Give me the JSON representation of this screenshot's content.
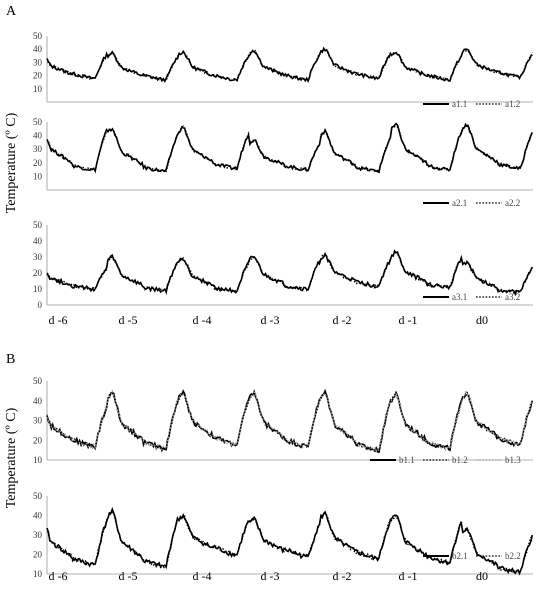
{
  "figure": {
    "panel_A_label": "A",
    "panel_B_label": "B",
    "ylabel_A": "Temperature (º C)",
    "ylabel_B": "Temperature (º C)",
    "day_labels": [
      "d -6",
      "d -5",
      "d -4",
      "d -3",
      "d -2",
      "d -1",
      "d0"
    ]
  },
  "chart_data": [
    {
      "id": "a1",
      "type": "line",
      "panel": "A",
      "ylim": [
        0,
        50
      ],
      "yticks": [
        10,
        20,
        30,
        40,
        50
      ],
      "xlim": [
        -6.35,
        0.5
      ],
      "x_unit": "day",
      "grid": false,
      "legend_position": "bottom-right",
      "daily_min": [
        18,
        17,
        17,
        17,
        18,
        17,
        19
      ],
      "daily_max": [
        39,
        37,
        38,
        39,
        40,
        38,
        40
      ],
      "series": [
        {
          "name": "a1.1",
          "style": "solid",
          "color": "#000000",
          "x": [
            -6.35,
            -6.2,
            -6.0,
            -5.8,
            -5.6,
            -5.4,
            -5.2,
            -5.0,
            -4.8,
            -4.6,
            -4.4,
            -4.2,
            -4.0,
            -3.8,
            -3.6,
            -3.4,
            -3.2,
            -3.0,
            -2.8,
            -2.6,
            -2.4,
            -2.2,
            -2.0,
            -1.8,
            -1.6,
            -1.4,
            -1.2,
            -1.0,
            -0.8,
            -0.6,
            -0.4,
            -0.2,
            0.0,
            0.2,
            0.4,
            0.5
          ],
          "y": [
            32,
            39,
            36,
            30,
            22,
            20,
            18,
            31,
            37,
            33,
            23,
            20,
            19,
            32,
            38,
            33,
            23,
            20,
            18,
            33,
            38,
            33,
            23,
            20,
            18,
            33,
            37,
            32,
            22,
            20,
            19,
            33,
            39,
            32,
            21,
            24
          ]
        },
        {
          "name": "a1.2",
          "style": "dotted",
          "color": "#000000",
          "x": [
            -6.35,
            -6.2,
            -6.0,
            -5.8,
            -5.6,
            -5.4,
            -5.2,
            -5.0,
            -4.8,
            -4.6,
            -4.4,
            -4.2,
            -4.0,
            -3.8,
            -3.6,
            -3.4,
            -3.2,
            -3.0,
            -2.8,
            -2.6,
            -2.4,
            -2.2,
            -2.0,
            -1.8,
            -1.6,
            -1.4,
            -1.2,
            -1.0,
            -0.8,
            -0.6,
            -0.4,
            -0.2,
            0.0,
            0.2,
            0.4,
            0.5
          ],
          "y": [
            33,
            38,
            38,
            32,
            23,
            21,
            19,
            33,
            38,
            34,
            24,
            21,
            20,
            34,
            39,
            34,
            24,
            21,
            19,
            35,
            40,
            34,
            24,
            21,
            19,
            35,
            38,
            33,
            23,
            21,
            20,
            35,
            40,
            33,
            22,
            24
          ]
        }
      ]
    },
    {
      "id": "a2",
      "type": "line",
      "panel": "A",
      "ylim": [
        0,
        50
      ],
      "yticks": [
        10,
        20,
        30,
        40,
        50
      ],
      "xlim": [
        -6.35,
        0.5
      ],
      "x_unit": "day",
      "grid": false,
      "legend_position": "bottom-right",
      "daily_min": [
        15,
        14,
        16,
        15,
        14,
        15,
        16
      ],
      "daily_max": [
        49,
        45,
        46,
        37,
        43,
        48,
        48
      ],
      "series": [
        {
          "name": "a2.1",
          "style": "solid",
          "color": "#000000",
          "x": [
            -6.35,
            -6.2,
            -6.0,
            -5.8,
            -5.6,
            -5.4,
            -5.2,
            -5.0,
            -4.8,
            -4.6,
            -4.4,
            -4.2,
            -4.0,
            -3.8,
            -3.6,
            -3.4,
            -3.2,
            -3.0,
            -2.8,
            -2.6,
            -2.4,
            -2.2,
            -2.0,
            -1.8,
            -1.6,
            -1.4,
            -1.2,
            -1.0,
            -0.8,
            -0.6,
            -0.4,
            -0.2,
            0.0,
            0.2,
            0.4,
            0.5
          ],
          "y": [
            24,
            36,
            48,
            38,
            20,
            16,
            15,
            28,
            44,
            35,
            20,
            17,
            16,
            32,
            45,
            33,
            20,
            18,
            17,
            30,
            36,
            30,
            19,
            16,
            14,
            30,
            42,
            30,
            19,
            16,
            15,
            32,
            47,
            33,
            20,
            16
          ]
        },
        {
          "name": "a2.2",
          "style": "dotted",
          "color": "#000000",
          "x": [
            -6.35,
            -6.2,
            -6.0,
            -5.8,
            -5.6,
            -5.4,
            -5.2,
            -5.0,
            -4.8,
            -4.6,
            -4.4,
            -4.2,
            -4.0,
            -3.8,
            -3.6,
            -3.4,
            -3.2,
            -3.0,
            -2.8,
            -2.6,
            -2.4,
            -2.2,
            -2.0,
            -1.8,
            -1.6,
            -1.4,
            -1.2,
            -1.0,
            -0.8,
            -0.6,
            -0.4,
            -0.2,
            0.0,
            0.2,
            0.4,
            0.5
          ],
          "y": [
            25,
            32,
            38,
            34,
            20,
            16,
            15,
            27,
            36,
            33,
            20,
            17,
            16,
            29,
            37,
            31,
            20,
            18,
            17,
            28,
            33,
            29,
            19,
            16,
            14,
            28,
            35,
            30,
            19,
            16,
            15,
            29,
            38,
            32,
            20,
            16
          ]
        }
      ]
    },
    {
      "id": "a3",
      "type": "line",
      "panel": "A",
      "ylim": [
        0,
        50
      ],
      "yticks": [
        0,
        10,
        20,
        30,
        40,
        50
      ],
      "xlim": [
        -6.35,
        0.5
      ],
      "x_unit": "day",
      "grid": false,
      "legend_position": "bottom-right",
      "daily_min": [
        10,
        9,
        9,
        10,
        12,
        11,
        8
      ],
      "daily_max": [
        25,
        30,
        29,
        30,
        31,
        33,
        27
      ],
      "series": [
        {
          "name": "a3.1",
          "style": "solid",
          "color": "#000000",
          "x": [
            -6.35,
            -6.2,
            -6.0,
            -5.8,
            -5.6,
            -5.4,
            -5.2,
            -5.0,
            -4.8,
            -4.6,
            -4.4,
            -4.2,
            -4.0,
            -3.8,
            -3.6,
            -3.4,
            -3.2,
            -3.0,
            -2.8,
            -2.6,
            -2.4,
            -2.2,
            -2.0,
            -1.8,
            -1.6,
            -1.4,
            -1.2,
            -1.0,
            -0.8,
            -0.6,
            -0.4,
            -0.2,
            0.0,
            0.2,
            0.4,
            0.5
          ],
          "y": [
            21,
            25,
            22,
            16,
            12,
            10,
            10,
            22,
            30,
            27,
            18,
            12,
            9,
            22,
            29,
            26,
            18,
            13,
            10,
            22,
            30,
            27,
            19,
            14,
            12,
            23,
            31,
            28,
            20,
            15,
            11,
            23,
            33,
            26,
            15,
            20
          ]
        },
        {
          "name": "a3.2",
          "style": "dotted",
          "color": "#000000",
          "x": [
            -6.35,
            -6.2,
            -6.0,
            -5.8,
            -5.6,
            -5.4,
            -5.2,
            -5.0,
            -4.8,
            -4.6,
            -4.4,
            -4.2,
            -4.0,
            -3.8,
            -3.6,
            -3.4,
            -3.2,
            -3.0,
            -2.8,
            -2.6,
            -2.4,
            -2.2,
            -2.0,
            -1.8,
            -1.6,
            -1.4,
            -1.2,
            -1.0,
            -0.8,
            -0.6,
            -0.4,
            -0.2,
            0.0,
            0.2,
            0.4,
            0.5
          ],
          "y": [
            22,
            26,
            23,
            17,
            12,
            10,
            10,
            23,
            31,
            28,
            18,
            12,
            9,
            23,
            30,
            27,
            18,
            13,
            10,
            23,
            31,
            28,
            19,
            14,
            12,
            24,
            32,
            29,
            20,
            15,
            11,
            24,
            32,
            27,
            15,
            21
          ]
        }
      ]
    },
    {
      "id": "b1",
      "type": "line",
      "panel": "B",
      "ylim": [
        10,
        50
      ],
      "yticks": [
        10,
        20,
        30,
        40,
        50
      ],
      "xlim": [
        -6.35,
        0.5
      ],
      "x_unit": "day",
      "grid": false,
      "legend_position": "bottom-right",
      "daily_min": [
        17,
        16,
        18,
        17,
        15,
        16,
        18
      ],
      "daily_max": [
        40,
        44,
        44,
        44,
        44,
        43,
        44
      ],
      "series": [
        {
          "name": "b1.1",
          "style": "solid",
          "color": "#000000",
          "x": [
            -6.35,
            -6.2,
            -6.0,
            -5.8,
            -5.6,
            -5.4,
            -5.2,
            -5.0,
            -4.8,
            -4.6,
            -4.4,
            -4.2,
            -4.0,
            -3.8,
            -3.6,
            -3.4,
            -3.2,
            -3.0,
            -2.8,
            -2.6,
            -2.4,
            -2.2,
            -2.0,
            -1.8,
            -1.6,
            -1.4,
            -1.2,
            -1.0,
            -0.8,
            -0.6,
            -0.4,
            -0.2,
            0.0,
            0.2,
            0.4,
            0.5
          ],
          "y": [
            31,
            38,
            37,
            28,
            20,
            17,
            17,
            32,
            37,
            33,
            21,
            19,
            18,
            34,
            37,
            32,
            21,
            19,
            17,
            33,
            37,
            32,
            21,
            18,
            16,
            33,
            38,
            32,
            21,
            19,
            18,
            34,
            39,
            33,
            20,
            24
          ]
        },
        {
          "name": "b1.2",
          "style": "dotted",
          "color": "#000000",
          "x": [
            -6.35,
            -6.2,
            -6.0,
            -5.8,
            -5.6,
            -5.4,
            -5.2,
            -5.0,
            -4.8,
            -4.6,
            -4.4,
            -4.2,
            -4.0,
            -3.8,
            -3.6,
            -3.4,
            -3.2,
            -3.0,
            -2.8,
            -2.6,
            -2.4,
            -2.2,
            -2.0,
            -1.8,
            -1.6,
            -1.4,
            -1.2,
            -1.0,
            -0.8,
            -0.6,
            -0.4,
            -0.2,
            0.0,
            0.2,
            0.4,
            0.5
          ],
          "y": [
            33,
            42,
            39,
            30,
            20,
            17,
            19,
            44,
            38,
            32,
            21,
            19,
            22,
            44,
            39,
            32,
            21,
            19,
            20,
            44,
            39,
            32,
            21,
            18,
            20,
            43,
            40,
            32,
            21,
            19,
            22,
            43,
            41,
            33,
            20,
            24
          ]
        },
        {
          "name": "b1.3",
          "style": "dotted",
          "color": "#9a9a9a",
          "x": [
            -6.35,
            -6.2,
            -6.0,
            -5.8,
            -5.6,
            -5.4,
            -5.2,
            -5.0,
            -4.8,
            -4.6,
            -4.4,
            -4.2,
            -4.0,
            -3.8,
            -3.6,
            -3.4,
            -3.2,
            -3.0,
            -2.8,
            -2.6,
            -2.4,
            -2.2,
            -2.0,
            -1.8,
            -1.6,
            -1.4,
            -1.2,
            -1.0,
            -0.8,
            -0.6,
            -0.4,
            -0.2,
            0.0,
            0.2,
            0.4,
            0.5
          ],
          "y": [
            32,
            40,
            38,
            29,
            20,
            17,
            18,
            36,
            38,
            33,
            21,
            19,
            20,
            39,
            38,
            32,
            21,
            19,
            18,
            38,
            38,
            32,
            21,
            18,
            17,
            37,
            39,
            32,
            21,
            19,
            20,
            38,
            40,
            33,
            20,
            24
          ]
        }
      ]
    },
    {
      "id": "b2",
      "type": "line",
      "panel": "B",
      "ylim": [
        10,
        50
      ],
      "yticks": [
        10,
        20,
        30,
        40,
        50
      ],
      "xlim": [
        -6.35,
        0.5
      ],
      "x_unit": "day",
      "grid": false,
      "legend_position": "bottom-right",
      "daily_min": [
        15,
        14,
        20,
        19,
        18,
        16,
        11
      ],
      "daily_max": [
        41,
        42,
        40,
        38,
        41,
        40,
        33
      ],
      "series": [
        {
          "name": "b2.1",
          "style": "solid",
          "color": "#000000",
          "x": [
            -6.35,
            -6.2,
            -6.0,
            -5.8,
            -5.6,
            -5.4,
            -5.2,
            -5.0,
            -4.8,
            -4.6,
            -4.4,
            -4.2,
            -4.0,
            -3.8,
            -3.6,
            -3.4,
            -3.2,
            -3.0,
            -2.8,
            -2.6,
            -2.4,
            -2.2,
            -2.0,
            -1.8,
            -1.6,
            -1.4,
            -1.2,
            -1.0,
            -0.8,
            -0.6,
            -0.4,
            -0.2,
            0.0,
            0.2,
            0.4,
            0.5
          ],
          "y": [
            33,
            38,
            41,
            25,
            18,
            15,
            15,
            32,
            40,
            34,
            20,
            15,
            15,
            34,
            39,
            33,
            27,
            23,
            20,
            32,
            36,
            30,
            25,
            21,
            18,
            32,
            39,
            33,
            25,
            21,
            16,
            27,
            31,
            27,
            13,
            19
          ]
        },
        {
          "name": "b2.2",
          "style": "dotted",
          "color": "#000000",
          "x": [
            -6.35,
            -6.2,
            -6.0,
            -5.8,
            -5.6,
            -5.4,
            -5.2,
            -5.0,
            -4.8,
            -4.6,
            -4.4,
            -4.2,
            -4.0,
            -3.8,
            -3.6,
            -3.4,
            -3.2,
            -3.0,
            -2.8,
            -2.6,
            -2.4,
            -2.2,
            -2.0,
            -1.8,
            -1.6,
            -1.4,
            -1.2,
            -1.0,
            -0.8,
            -0.6,
            -0.4,
            -0.2,
            0.0,
            0.2,
            0.4,
            0.5
          ],
          "y": [
            35,
            39,
            40,
            25,
            18,
            15,
            15,
            34,
            42,
            34,
            20,
            15,
            15,
            35,
            39,
            33,
            27,
            23,
            20,
            34,
            41,
            30,
            25,
            21,
            18,
            34,
            40,
            33,
            25,
            21,
            16,
            28,
            33,
            27,
            13,
            19
          ]
        }
      ]
    }
  ]
}
